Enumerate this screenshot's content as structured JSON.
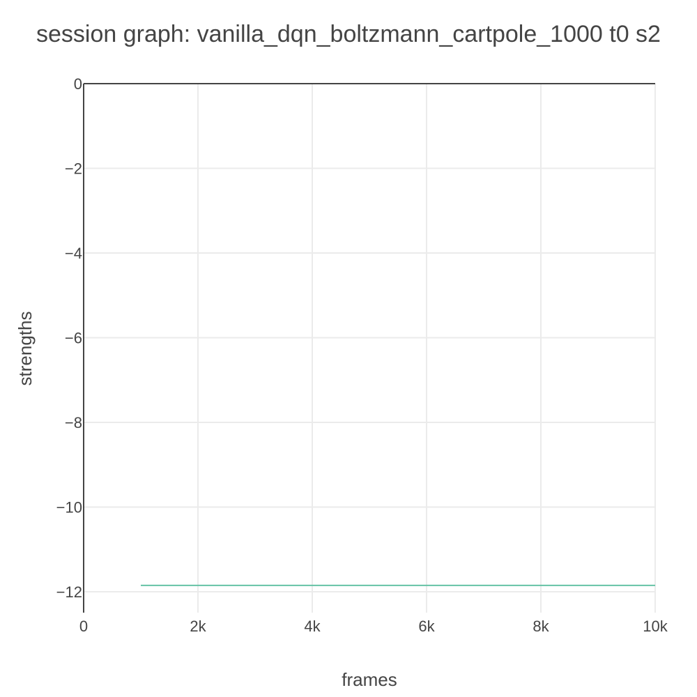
{
  "chart_data": {
    "type": "line",
    "title": "session graph: vanilla_dqn_boltzmann_cartpole_1000 t0 s2",
    "xlabel": "frames",
    "ylabel": "strengths",
    "xlim": [
      0,
      10000
    ],
    "ylim": [
      -12.5,
      0
    ],
    "x_ticks": [
      0,
      2000,
      4000,
      6000,
      8000,
      10000
    ],
    "x_tick_labels": [
      "0",
      "2k",
      "4k",
      "6k",
      "8k",
      "10k"
    ],
    "y_ticks": [
      0,
      -2,
      -4,
      -6,
      -8,
      -10,
      -12
    ],
    "y_tick_labels": [
      "0",
      "−2",
      "−4",
      "−6",
      "−8",
      "−10",
      "−12"
    ],
    "grid": true,
    "legend": "none",
    "series": [
      {
        "color": "#66c2a5",
        "x": [
          1000,
          2000,
          3000,
          4000,
          5000,
          6000,
          7000,
          8000,
          9000,
          10000
        ],
        "y": [
          -11.85,
          -11.85,
          -11.85,
          -11.85,
          -11.85,
          -11.85,
          -11.85,
          -11.85,
          -11.85,
          -11.85
        ]
      }
    ]
  }
}
